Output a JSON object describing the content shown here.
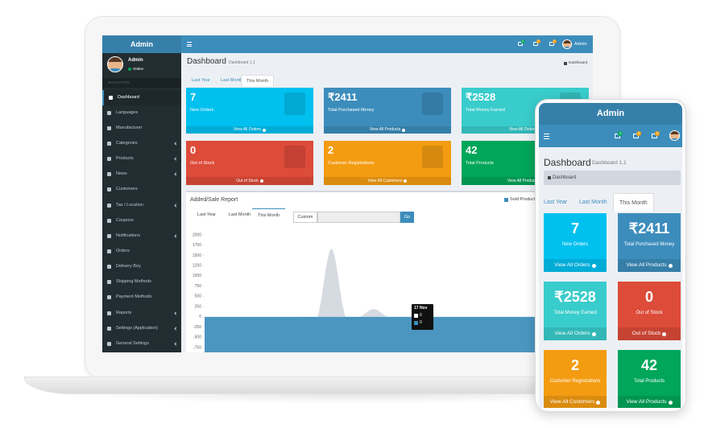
{
  "sidebar": {
    "brand": "Admin",
    "user": {
      "name": "Admin",
      "status": "Online"
    },
    "section": "NAVIGATION",
    "menu": [
      "Dashboard",
      "Languages",
      "Manufacturer",
      "Categories",
      "Products",
      "News",
      "Customers",
      "Tax / Location",
      "Coupons",
      "Notifications",
      "Orders",
      "Delivery Boy",
      "Shipping Methods",
      "Payment Methods",
      "Reports",
      "Settings (Application)",
      "General Settings"
    ]
  },
  "topbar": {
    "notifications": [
      4,
      5,
      6
    ],
    "user": "Admin"
  },
  "header": {
    "title": "Dashboard",
    "subtitle": "Dashboard 1.1",
    "breadcrumb": "Dashboard"
  },
  "tabs": [
    "Last Year",
    "Last Month",
    "This Month"
  ],
  "cards": [
    {
      "value": 7,
      "label": "New Orders",
      "link": "View All Orders",
      "color": "#00c0ef"
    },
    {
      "value": "₹2411",
      "label": "Total Purchased Money",
      "link": "View All Products",
      "color": "#3c8dbc"
    },
    {
      "value": "₹2528",
      "label": "Total Money Earned",
      "link": "View All Orders",
      "color": "#39cccc"
    },
    {
      "value": 0,
      "label": "Out of Stock",
      "link": "Out of Stock",
      "color": "#dd4b39"
    },
    {
      "value": 2,
      "label": "Customer Registrations",
      "link": "View All Customers",
      "color": "#f39c12"
    },
    {
      "value": 42,
      "label": "Total Products",
      "link": "View All Products",
      "color": "#00a65a"
    }
  ],
  "report": {
    "title": "Added/Sale Report",
    "custom": "Custom",
    "button": "Go",
    "ylim": [
      -900,
      2000
    ],
    "yticks": [
      2000,
      1750,
      1500,
      1250,
      1000,
      750,
      500,
      250,
      0,
      -250,
      -500,
      -750
    ],
    "series": [
      {
        "name": "Sold Products",
        "color": "#3c8dbc",
        "values": [
          0,
          0,
          0,
          0,
          0,
          0,
          0,
          0,
          0,
          0,
          0,
          0,
          0,
          0,
          0,
          0,
          0,
          0,
          0,
          0,
          0,
          0,
          0,
          0,
          0,
          0,
          0,
          0,
          0,
          0
        ]
      },
      {
        "color": "#d2d6de",
        "values": [
          0,
          0,
          0,
          0,
          0,
          0,
          0,
          0,
          0,
          1660,
          0,
          0,
          190,
          0,
          0,
          0,
          0,
          0,
          0,
          0,
          0,
          0,
          0,
          0,
          0,
          0,
          0,
          0,
          0,
          0
        ]
      }
    ],
    "tooltip": {
      "title": "17 Nov",
      "values": [
        0,
        0
      ]
    }
  }
}
